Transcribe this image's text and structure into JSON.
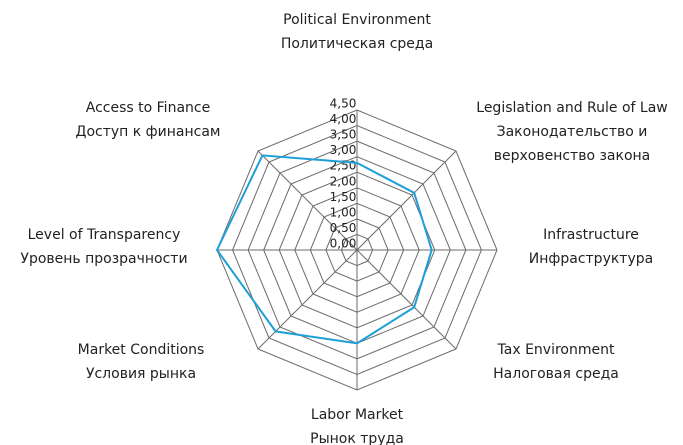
{
  "chart_data": {
    "type": "radar",
    "categories": [
      [
        "Political Environment",
        "Политическая среда"
      ],
      [
        "Legislation and Rule of Law",
        "Законодательство и",
        "верховенство закона"
      ],
      [
        "Infrastructure",
        "Инфраструктура"
      ],
      [
        "Tax Environment",
        "Налоговая среда"
      ],
      [
        "Labor Market",
        "Рынок труда"
      ],
      [
        "Market Conditions",
        "Условия рынка"
      ],
      [
        "Level of Transparency",
        "Уровень прозрачности"
      ],
      [
        "Access to Finance",
        "Доступ к финансам"
      ]
    ],
    "values": [
      2.8,
      2.6,
      2.4,
      2.6,
      3.0,
      3.7,
      4.5,
      4.3
    ],
    "color": "#1e9fd8",
    "ylim": [
      0,
      4.5
    ],
    "yticks": [
      {
        "value": 0,
        "label": "0,00"
      },
      {
        "value": 0.5,
        "label": "0,50"
      },
      {
        "value": 1,
        "label": "1,00"
      },
      {
        "value": 1.5,
        "label": "1,50"
      },
      {
        "value": 2,
        "label": "2,00"
      },
      {
        "value": 2.5,
        "label": "2,50"
      },
      {
        "value": 3,
        "label": "3,00"
      },
      {
        "value": 3.5,
        "label": "3,50"
      },
      {
        "value": 4,
        "label": "4,00"
      },
      {
        "value": 4.5,
        "label": "4,50"
      }
    ],
    "grid": true
  }
}
